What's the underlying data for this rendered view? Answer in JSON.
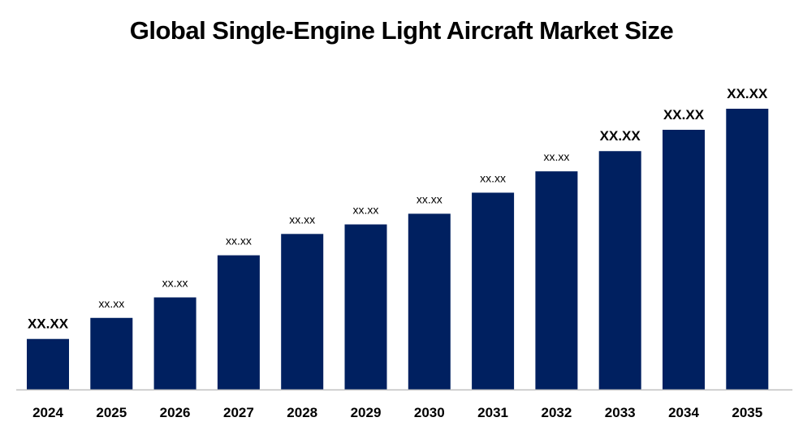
{
  "chart_data": {
    "type": "bar",
    "title": "Global Single-Engine Light Aircraft Market Size",
    "xlabel": "",
    "ylabel": "",
    "categories": [
      "2024",
      "2025",
      "2026",
      "2027",
      "2028",
      "2029",
      "2030",
      "2031",
      "2032",
      "2033",
      "2034",
      "2035"
    ],
    "values": [
      18,
      25.5,
      32.8,
      47.8,
      55.4,
      58.8,
      62.6,
      70.1,
      77.7,
      84.9,
      92.5,
      100
    ],
    "data_labels": [
      "XX.XX",
      "xx.xx",
      "xx.xx",
      "xx.xx",
      "xx.xx",
      "xx.xx",
      "xx.xx",
      "xx.xx",
      "xx.xx",
      "XX.XX",
      "XX.XX",
      "XX.XX"
    ],
    "ylim": [
      0,
      100
    ],
    "grid": false,
    "legend": "none",
    "bar_color": "#002060",
    "axis_color": "#bfbfbf"
  }
}
